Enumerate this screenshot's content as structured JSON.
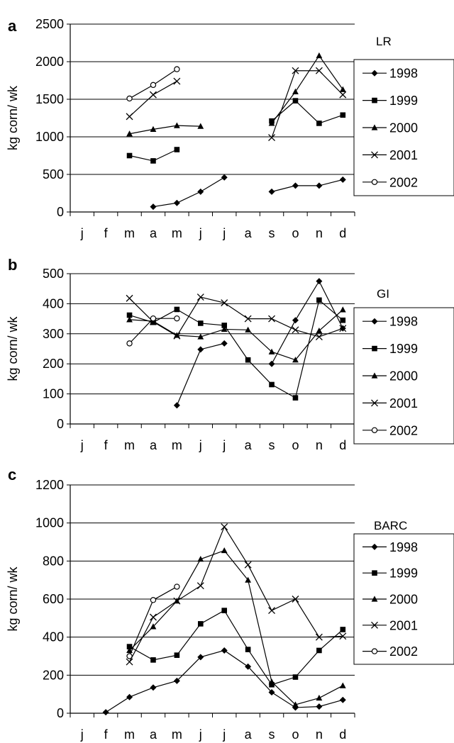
{
  "series_styles": [
    {
      "name": "1998",
      "marker": "diamond"
    },
    {
      "name": "1999",
      "marker": "square"
    },
    {
      "name": "2000",
      "marker": "triangle"
    },
    {
      "name": "2001",
      "marker": "cross"
    },
    {
      "name": "2002",
      "marker": "circle"
    }
  ],
  "chart_data": [
    {
      "panel_label": "a",
      "type": "line",
      "title": "LR",
      "ylabel": "kg corn/ wk",
      "xlabel": "",
      "ylim": [
        0,
        2500
      ],
      "yticks": [
        0,
        500,
        1000,
        1500,
        2000,
        2500
      ],
      "categories": [
        "j",
        "f",
        "m",
        "a",
        "m",
        "j",
        "j",
        "a",
        "s",
        "o",
        "n",
        "d"
      ],
      "grid": "horizontal",
      "legend": "right",
      "series": [
        {
          "name": "1998",
          "values": [
            null,
            null,
            null,
            70,
            120,
            270,
            460,
            null,
            270,
            350,
            350,
            430
          ]
        },
        {
          "name": "1999",
          "values": [
            null,
            null,
            750,
            680,
            830,
            null,
            null,
            null,
            1210,
            1480,
            1180,
            1290
          ]
        },
        {
          "name": "2000",
          "values": [
            null,
            null,
            1040,
            1100,
            1150,
            1140,
            null,
            null,
            1180,
            1600,
            2080,
            1630
          ]
        },
        {
          "name": "2001",
          "values": [
            null,
            null,
            1270,
            1560,
            1740,
            null,
            null,
            null,
            990,
            1880,
            1880,
            1560
          ]
        },
        {
          "name": "2002",
          "values": [
            null,
            null,
            1510,
            1690,
            1900,
            null,
            null,
            null,
            null,
            null,
            null,
            null
          ]
        }
      ]
    },
    {
      "panel_label": "b",
      "type": "line",
      "title": "GI",
      "ylabel": "kg corn/ wk",
      "xlabel": "",
      "ylim": [
        0,
        500
      ],
      "yticks": [
        0,
        100,
        200,
        300,
        400,
        500
      ],
      "categories": [
        "j",
        "f",
        "m",
        "a",
        "m",
        "j",
        "j",
        "a",
        "s",
        "o",
        "n",
        "d"
      ],
      "grid": "horizontal",
      "legend": "right",
      "series": [
        {
          "name": "1998",
          "values": [
            null,
            null,
            null,
            null,
            62,
            248,
            268,
            null,
            200,
            345,
            475,
            318
          ]
        },
        {
          "name": "1999",
          "values": [
            null,
            null,
            362,
            338,
            381,
            335,
            328,
            213,
            131,
            87,
            412,
            345
          ]
        },
        {
          "name": "2000",
          "values": [
            null,
            null,
            347,
            342,
            295,
            290,
            315,
            313,
            240,
            213,
            310,
            380
          ]
        },
        {
          "name": "2001",
          "values": [
            null,
            null,
            418,
            340,
            293,
            422,
            403,
            350,
            350,
            313,
            290,
            318
          ]
        },
        {
          "name": "2002",
          "values": [
            null,
            null,
            268,
            351,
            351,
            null,
            null,
            null,
            null,
            null,
            null,
            null
          ]
        }
      ]
    },
    {
      "panel_label": "c",
      "type": "line",
      "title": "BARC",
      "ylabel": "kg corn/ wk",
      "xlabel": "",
      "ylim": [
        0,
        1200
      ],
      "yticks": [
        0,
        200,
        400,
        600,
        800,
        1000,
        1200
      ],
      "categories": [
        "j",
        "f",
        "m",
        "a",
        "m",
        "j",
        "j",
        "a",
        "s",
        "o",
        "n",
        "d"
      ],
      "grid": "horizontal",
      "legend": "right",
      "series": [
        {
          "name": "1998",
          "values": [
            null,
            5,
            85,
            135,
            170,
            295,
            330,
            245,
            110,
            30,
            35,
            70
          ]
        },
        {
          "name": "1999",
          "values": [
            null,
            null,
            350,
            280,
            305,
            470,
            540,
            335,
            150,
            190,
            330,
            440
          ]
        },
        {
          "name": "2000",
          "values": [
            null,
            null,
            330,
            455,
            590,
            810,
            855,
            700,
            165,
            45,
            80,
            145
          ]
        },
        {
          "name": "2001",
          "values": [
            null,
            null,
            270,
            505,
            590,
            670,
            980,
            780,
            540,
            600,
            400,
            405
          ]
        },
        {
          "name": "2002",
          "values": [
            null,
            null,
            300,
            595,
            665,
            null,
            null,
            null,
            null,
            null,
            null,
            null
          ]
        }
      ]
    }
  ]
}
